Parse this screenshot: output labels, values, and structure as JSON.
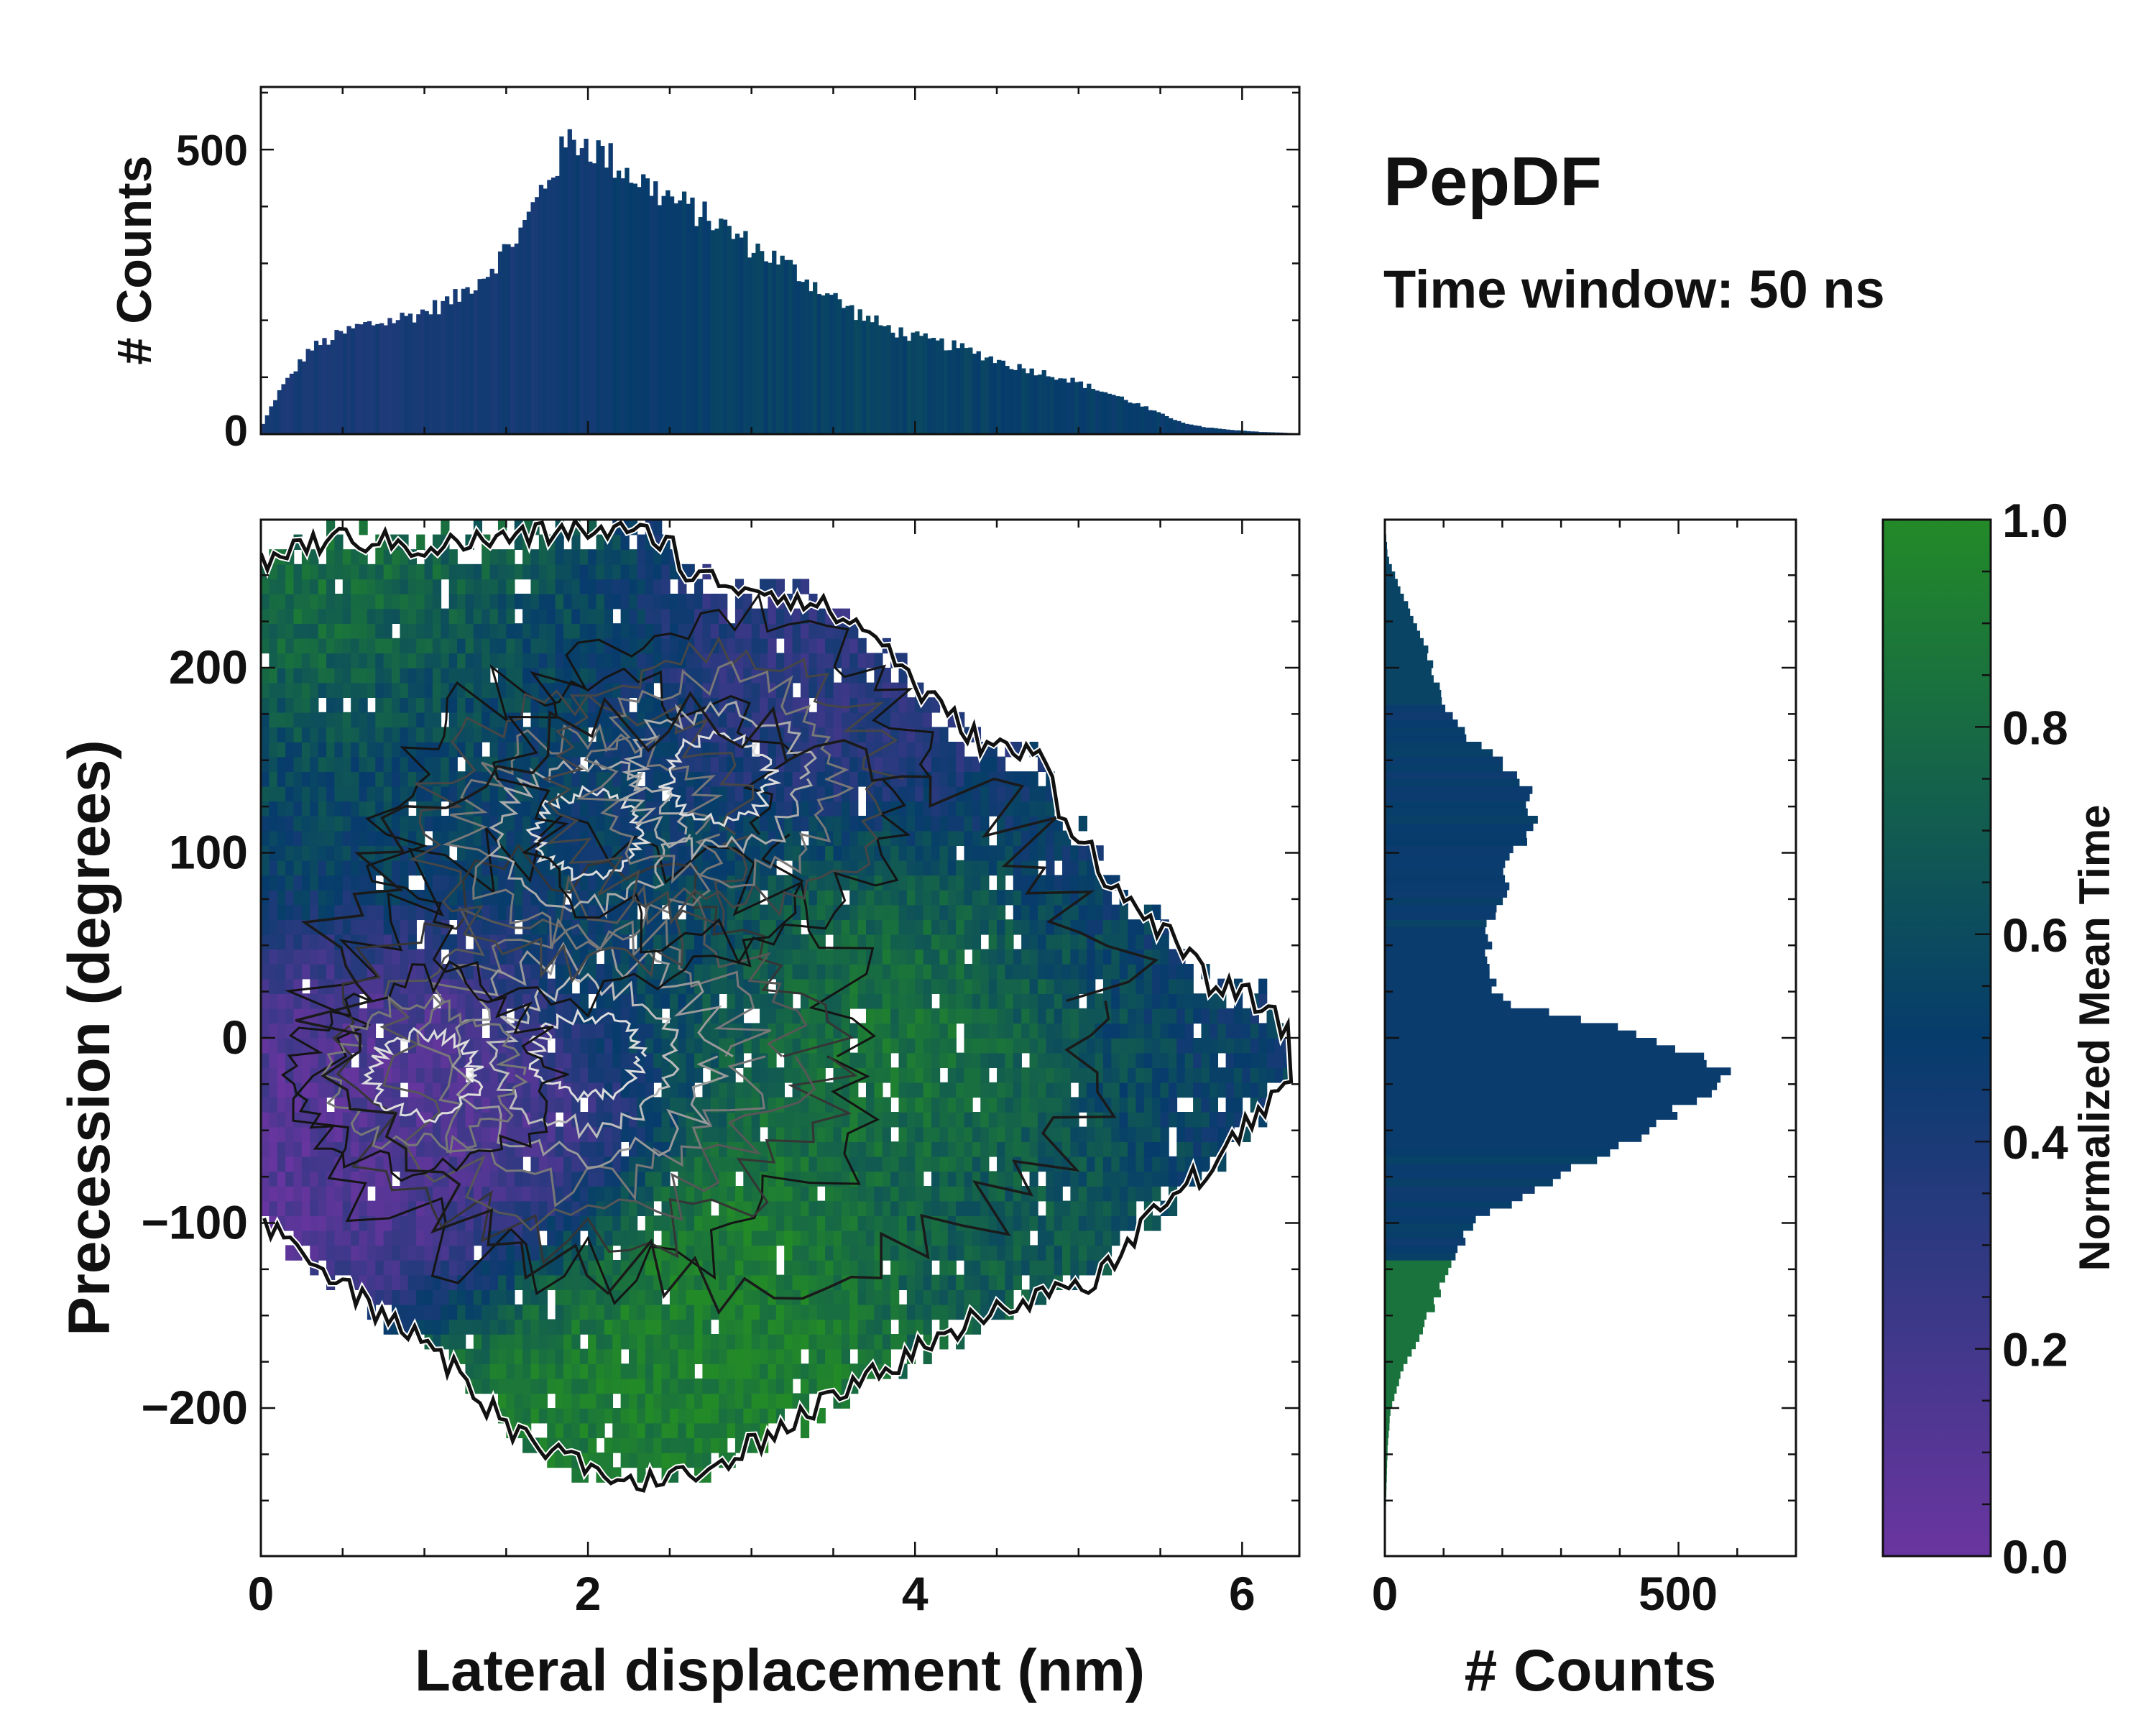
{
  "title": "PepDF",
  "subtitle": "Time window: 50 ns",
  "colors": {
    "low": "#6a35a0",
    "mid": "#063c6c",
    "high": "#238a28",
    "contour_outer": "#111111",
    "contour_inner": "#ffffff"
  },
  "chart_data": [
    {
      "name": "top-histogram",
      "type": "bar",
      "description": "Marginal histogram of lateral displacement",
      "ylabel": "# Counts",
      "xlim": [
        0,
        6.35
      ],
      "ylim": [
        0,
        610
      ],
      "yticks": [
        0,
        500
      ],
      "ytick_labels": [
        "0",
        "500"
      ],
      "bin_start": 0.0,
      "bin_width": 0.025,
      "profile_x": [
        0.0,
        0.1,
        0.3,
        0.6,
        0.8,
        1.0,
        1.2,
        1.4,
        1.6,
        1.75,
        1.9,
        2.0,
        2.2,
        2.4,
        2.6,
        2.8,
        3.0,
        3.2,
        3.4,
        3.6,
        3.8,
        4.0,
        4.3,
        4.6,
        4.9,
        5.1,
        5.3,
        5.5,
        5.7,
        5.9,
        6.1,
        6.3
      ],
      "profile_counts": [
        10,
        70,
        150,
        190,
        200,
        215,
        240,
        290,
        360,
        450,
        520,
        510,
        470,
        430,
        400,
        370,
        330,
        300,
        260,
        220,
        190,
        170,
        150,
        120,
        100,
        80,
        60,
        35,
        15,
        8,
        4,
        2
      ]
    },
    {
      "name": "main-heatmap",
      "type": "heatmap",
      "description": "2D histogram colored by normalized mean time, with density contours",
      "xlabel": "Lateral displacement (nm)",
      "ylabel": "Precession (degrees)",
      "xlim": [
        0,
        6.35
      ],
      "ylim": [
        -280,
        280
      ],
      "xticks": [
        0,
        2,
        4,
        6
      ],
      "xtick_labels": [
        "0",
        "2",
        "4",
        "6"
      ],
      "yticks": [
        -200,
        -100,
        0,
        100,
        200
      ],
      "ytick_labels": [
        "−200",
        "−100",
        "0",
        "100",
        "200"
      ],
      "density_peaks": [
        {
          "x": 2.0,
          "y": -10,
          "label": "primary"
        },
        {
          "x": 2.0,
          "y": 110,
          "label": "secondary"
        },
        {
          "x": 2.8,
          "y": 140,
          "label": "secondary"
        },
        {
          "x": 1.0,
          "y": -20,
          "label": "minor"
        }
      ],
      "color_regions": [
        {
          "x": 0.5,
          "y": -20,
          "value": 0.1
        },
        {
          "x": 1.2,
          "y": -60,
          "value": 0.15
        },
        {
          "x": 1.5,
          "y": 180,
          "value": 0.5
        },
        {
          "x": 2.5,
          "y": 60,
          "value": 0.5
        },
        {
          "x": 3.5,
          "y": 30,
          "value": 0.85
        },
        {
          "x": 4.3,
          "y": 10,
          "value": 0.9
        },
        {
          "x": 2.8,
          "y": -150,
          "value": 0.95
        },
        {
          "x": 2.0,
          "y": -200,
          "value": 0.9
        },
        {
          "x": 0.7,
          "y": 230,
          "value": 0.85
        },
        {
          "x": 5.0,
          "y": 80,
          "value": 0.45
        },
        {
          "x": 5.5,
          "y": -20,
          "value": 0.5
        },
        {
          "x": 3.5,
          "y": 180,
          "value": 0.3
        },
        {
          "x": 4.5,
          "y": -100,
          "value": 0.7
        },
        {
          "x": 0.5,
          "y": 120,
          "value": 0.55
        }
      ],
      "outline_upper": [
        [
          0.0,
          255
        ],
        [
          0.2,
          265
        ],
        [
          0.5,
          270
        ],
        [
          1.0,
          265
        ],
        [
          1.5,
          270
        ],
        [
          2.0,
          275
        ],
        [
          2.5,
          270
        ],
        [
          2.6,
          250
        ],
        [
          3.2,
          240
        ],
        [
          3.5,
          230
        ],
        [
          3.8,
          215
        ],
        [
          4.0,
          190
        ],
        [
          4.4,
          160
        ],
        [
          4.8,
          150
        ],
        [
          4.9,
          120
        ],
        [
          5.1,
          100
        ],
        [
          5.2,
          80
        ],
        [
          5.5,
          60
        ],
        [
          5.8,
          30
        ],
        [
          6.1,
          20
        ],
        [
          6.3,
          0
        ]
      ],
      "outline_lower": [
        [
          0.0,
          -100
        ],
        [
          0.3,
          -120
        ],
        [
          0.6,
          -140
        ],
        [
          0.9,
          -160
        ],
        [
          1.2,
          -180
        ],
        [
          1.5,
          -210
        ],
        [
          1.9,
          -230
        ],
        [
          2.3,
          -240
        ],
        [
          2.8,
          -230
        ],
        [
          3.2,
          -210
        ],
        [
          3.6,
          -190
        ],
        [
          4.0,
          -170
        ],
        [
          4.4,
          -150
        ],
        [
          4.8,
          -140
        ],
        [
          5.1,
          -130
        ],
        [
          5.5,
          -90
        ],
        [
          5.8,
          -70
        ],
        [
          6.0,
          -50
        ],
        [
          6.3,
          -20
        ]
      ]
    },
    {
      "name": "right-histogram",
      "type": "bar",
      "orientation": "horizontal",
      "description": "Marginal histogram of precession",
      "xlabel": "# Counts",
      "xlim": [
        0,
        700
      ],
      "ylim": [
        -280,
        280
      ],
      "xticks": [
        0,
        500
      ],
      "xtick_labels": [
        "0",
        "500"
      ],
      "bin_start": -280,
      "bin_width": 4,
      "profile_y": [
        -280,
        -250,
        -220,
        -200,
        -180,
        -160,
        -140,
        -120,
        -100,
        -80,
        -60,
        -40,
        -20,
        -10,
        0,
        10,
        20,
        40,
        60,
        80,
        100,
        120,
        140,
        160,
        180,
        200,
        220,
        240,
        260,
        280
      ],
      "profile_counts": [
        0,
        2,
        5,
        10,
        30,
        60,
        90,
        110,
        150,
        260,
        380,
        500,
        600,
        560,
        470,
        330,
        200,
        170,
        180,
        200,
        220,
        260,
        240,
        150,
        100,
        80,
        60,
        30,
        5,
        0
      ]
    },
    {
      "name": "colorbar",
      "type": "colorbar",
      "label": "Normalized Mean Time",
      "range": [
        0.0,
        1.0
      ],
      "ticks": [
        0.0,
        0.2,
        0.4,
        0.6,
        0.8,
        1.0
      ],
      "tick_labels": [
        "0.0",
        "0.2",
        "0.4",
        "0.6",
        "0.8",
        "1.0"
      ]
    }
  ]
}
